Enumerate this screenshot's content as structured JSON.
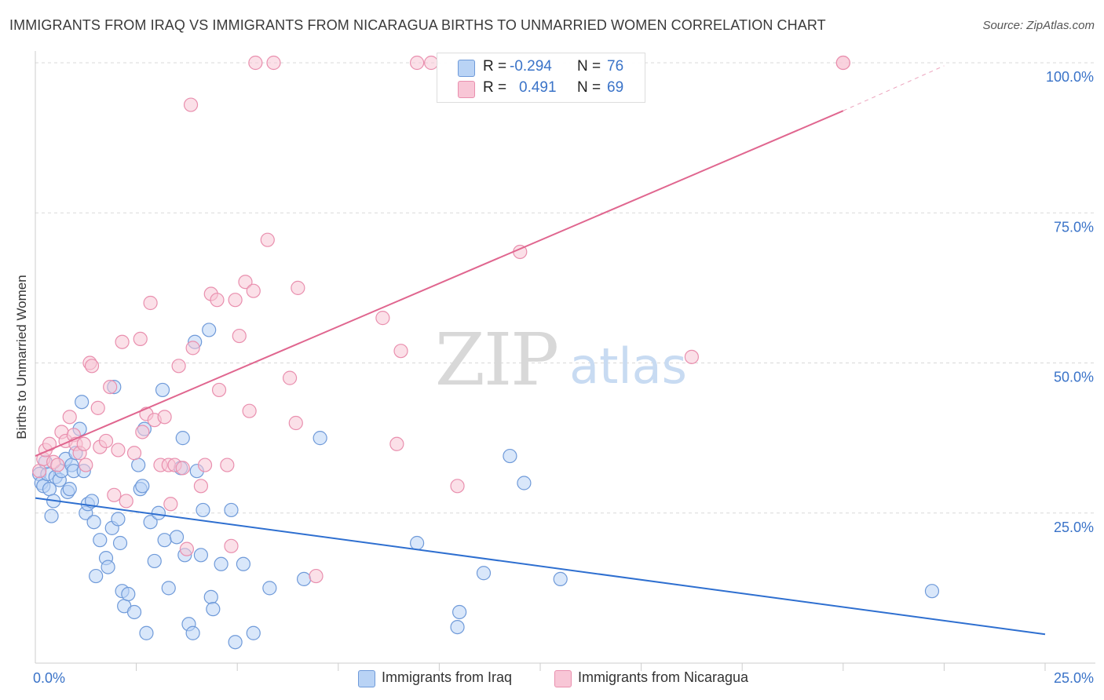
{
  "title": "IMMIGRANTS FROM IRAQ VS IMMIGRANTS FROM NICARAGUA BIRTHS TO UNMARRIED WOMEN CORRELATION CHART",
  "source": "Source: ZipAtlas.com",
  "watermark": {
    "zip": "ZIP",
    "atlas": "atlas"
  },
  "legend": {
    "r_label": "R =",
    "n_label": "N =",
    "iraq": {
      "r": "-0.294",
      "n": "76"
    },
    "nicaragua": {
      "r": "0.491",
      "n": "69"
    }
  },
  "colors": {
    "iraq_fill": "#b9d3f5",
    "iraq_stroke": "#6f9ad9",
    "iraq_line": "#2e6fd0",
    "nicaragua_fill": "#f8c6d6",
    "nicaragua_stroke": "#e98fae",
    "nicaragua_line": "#e0668f",
    "tick_text": "#3a73c8",
    "grid": "#d9d9d9"
  },
  "chart_data": {
    "type": "scatter",
    "title": "IMMIGRANTS FROM IRAQ VS IMMIGRANTS FROM NICARAGUA BIRTHS TO UNMARRIED WOMEN CORRELATION CHART",
    "xlabel": "",
    "ylabel": "Births to Unmarried Women",
    "xlim": [
      0,
      25
    ],
    "ylim": [
      0,
      100
    ],
    "x_tick_labels": [
      "0.0%",
      "25.0%"
    ],
    "y_tick_labels": [
      "25.0%",
      "50.0%",
      "75.0%",
      "100.0%"
    ],
    "y_ticks": [
      25,
      50,
      75,
      100
    ],
    "grid": true,
    "legend_position": "bottom",
    "series": [
      {
        "name": "Immigrants from Iraq",
        "color": "#b9d3f5",
        "trend": {
          "x": [
            0,
            25
          ],
          "y": [
            27.5,
            4.8
          ]
        },
        "points": [
          [
            0.1,
            31.5
          ],
          [
            0.15,
            30.0
          ],
          [
            0.2,
            29.5
          ],
          [
            0.3,
            31.5
          ],
          [
            0.25,
            33.5
          ],
          [
            0.35,
            29.0
          ],
          [
            0.4,
            24.5
          ],
          [
            0.45,
            27.0
          ],
          [
            0.5,
            31.0
          ],
          [
            0.6,
            30.5
          ],
          [
            0.65,
            32.0
          ],
          [
            0.75,
            34.0
          ],
          [
            0.8,
            28.5
          ],
          [
            0.85,
            29.0
          ],
          [
            0.9,
            33.0
          ],
          [
            0.95,
            32.0
          ],
          [
            1.0,
            35.0
          ],
          [
            1.1,
            39.0
          ],
          [
            1.15,
            43.5
          ],
          [
            1.2,
            32.0
          ],
          [
            1.25,
            25.0
          ],
          [
            1.3,
            26.5
          ],
          [
            1.4,
            27.0
          ],
          [
            1.45,
            23.5
          ],
          [
            1.5,
            14.5
          ],
          [
            1.6,
            20.5
          ],
          [
            1.75,
            17.5
          ],
          [
            1.8,
            16.0
          ],
          [
            1.9,
            22.5
          ],
          [
            1.95,
            46.0
          ],
          [
            2.05,
            24.0
          ],
          [
            2.1,
            20.0
          ],
          [
            2.15,
            12.0
          ],
          [
            2.2,
            9.5
          ],
          [
            2.3,
            11.5
          ],
          [
            2.45,
            8.5
          ],
          [
            2.55,
            33.0
          ],
          [
            2.6,
            29.0
          ],
          [
            2.65,
            29.5
          ],
          [
            2.7,
            39.0
          ],
          [
            2.75,
            5.0
          ],
          [
            2.85,
            23.5
          ],
          [
            2.95,
            17.0
          ],
          [
            3.05,
            25.0
          ],
          [
            3.15,
            45.5
          ],
          [
            3.2,
            20.5
          ],
          [
            3.3,
            12.5
          ],
          [
            3.5,
            21.0
          ],
          [
            3.6,
            32.5
          ],
          [
            3.65,
            37.5
          ],
          [
            3.7,
            18.0
          ],
          [
            3.8,
            6.5
          ],
          [
            3.9,
            5.0
          ],
          [
            3.95,
            53.5
          ],
          [
            4.0,
            32.0
          ],
          [
            4.1,
            18.0
          ],
          [
            4.15,
            25.5
          ],
          [
            4.3,
            55.5
          ],
          [
            4.35,
            11.0
          ],
          [
            4.4,
            9.0
          ],
          [
            4.6,
            16.5
          ],
          [
            4.85,
            25.5
          ],
          [
            4.95,
            3.5
          ],
          [
            5.15,
            16.5
          ],
          [
            5.4,
            5.0
          ],
          [
            5.8,
            12.5
          ],
          [
            6.65,
            14.0
          ],
          [
            7.05,
            37.5
          ],
          [
            9.45,
            20.0
          ],
          [
            10.45,
            6.0
          ],
          [
            10.5,
            8.5
          ],
          [
            11.1,
            15.0
          ],
          [
            11.75,
            34.5
          ],
          [
            12.1,
            30.0
          ],
          [
            13.0,
            14.0
          ],
          [
            22.2,
            12.0
          ]
        ]
      },
      {
        "name": "Immigrants from Nicaragua",
        "color": "#f8c6d6",
        "trend": {
          "x": [
            0,
            20
          ],
          "y": [
            34.5,
            92.0
          ]
        },
        "trend_dashed": {
          "x": [
            20,
            22.5
          ],
          "y": [
            92.0,
            99.5
          ]
        },
        "points": [
          [
            0.1,
            32.0
          ],
          [
            0.2,
            34.0
          ],
          [
            0.25,
            35.5
          ],
          [
            0.35,
            36.5
          ],
          [
            0.45,
            33.5
          ],
          [
            0.55,
            33.0
          ],
          [
            0.65,
            38.5
          ],
          [
            0.75,
            37.0
          ],
          [
            0.85,
            41.0
          ],
          [
            0.95,
            38.0
          ],
          [
            1.0,
            36.5
          ],
          [
            1.1,
            35.0
          ],
          [
            1.2,
            36.5
          ],
          [
            1.25,
            33.0
          ],
          [
            1.35,
            50.0
          ],
          [
            1.4,
            49.5
          ],
          [
            1.55,
            42.5
          ],
          [
            1.6,
            36.0
          ],
          [
            1.75,
            37.0
          ],
          [
            1.85,
            46.0
          ],
          [
            1.95,
            28.0
          ],
          [
            2.05,
            35.5
          ],
          [
            2.15,
            53.5
          ],
          [
            2.25,
            27.0
          ],
          [
            2.45,
            35.0
          ],
          [
            2.6,
            54.0
          ],
          [
            2.65,
            38.5
          ],
          [
            2.75,
            41.5
          ],
          [
            2.85,
            60.0
          ],
          [
            2.95,
            40.5
          ],
          [
            3.1,
            33.0
          ],
          [
            3.2,
            41.0
          ],
          [
            3.3,
            33.0
          ],
          [
            3.35,
            26.5
          ],
          [
            3.45,
            33.0
          ],
          [
            3.55,
            49.5
          ],
          [
            3.65,
            32.5
          ],
          [
            3.75,
            19.0
          ],
          [
            3.85,
            93.0
          ],
          [
            3.9,
            52.5
          ],
          [
            4.1,
            29.5
          ],
          [
            4.2,
            33.0
          ],
          [
            4.35,
            61.5
          ],
          [
            4.5,
            60.5
          ],
          [
            4.55,
            45.5
          ],
          [
            4.75,
            33.0
          ],
          [
            4.85,
            19.5
          ],
          [
            4.95,
            60.5
          ],
          [
            5.05,
            54.5
          ],
          [
            5.2,
            63.5
          ],
          [
            5.3,
            42.0
          ],
          [
            5.4,
            62.0
          ],
          [
            5.45,
            100
          ],
          [
            5.75,
            70.5
          ],
          [
            5.9,
            100
          ],
          [
            6.3,
            47.5
          ],
          [
            6.45,
            40.0
          ],
          [
            6.5,
            62.5
          ],
          [
            6.95,
            14.5
          ],
          [
            8.6,
            57.5
          ],
          [
            8.95,
            36.5
          ],
          [
            9.05,
            52.0
          ],
          [
            9.45,
            100
          ],
          [
            9.8,
            100
          ],
          [
            10.45,
            29.5
          ],
          [
            12.0,
            68.5
          ],
          [
            16.25,
            51.0
          ],
          [
            20.0,
            100
          ],
          [
            20.0,
            100
          ]
        ]
      }
    ]
  },
  "bottom_legend": {
    "iraq": "Immigrants from Iraq",
    "nicaragua": "Immigrants from Nicaragua"
  }
}
